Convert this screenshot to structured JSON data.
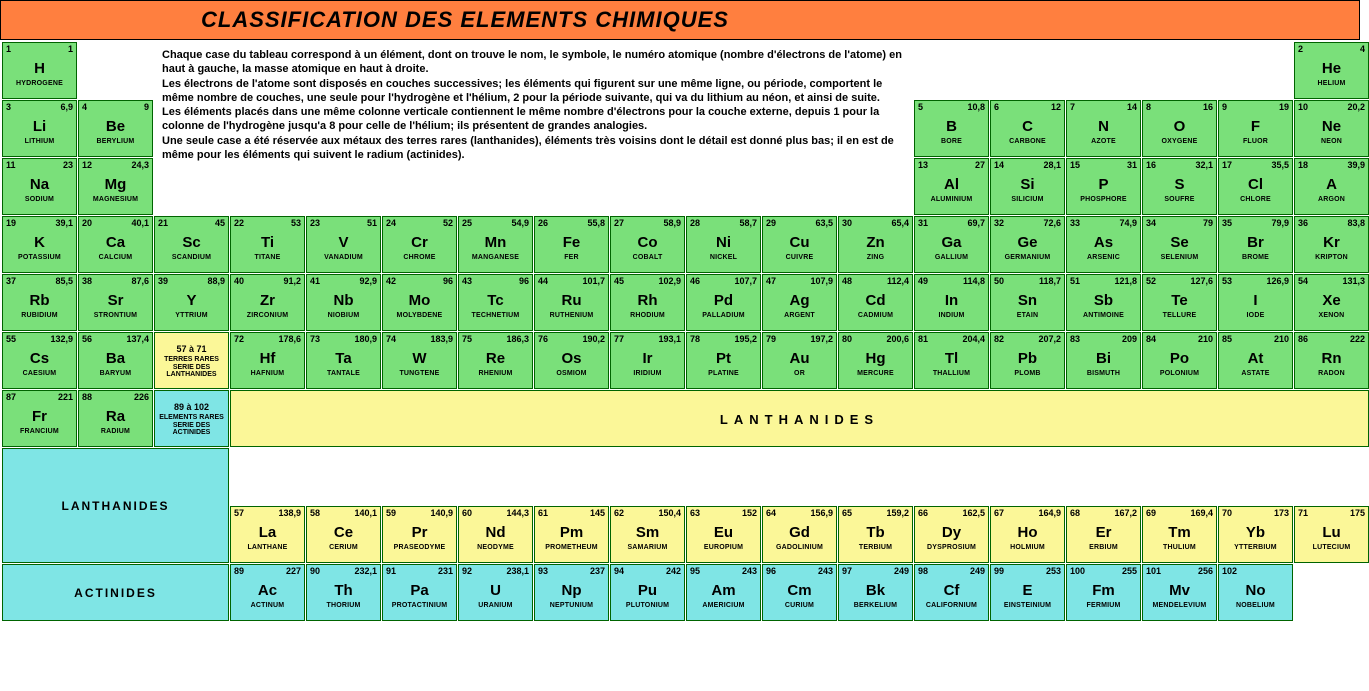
{
  "title": "CLASSIFICATION DES ELEMENTS CHIMIQUES",
  "description": [
    "Chaque case du tableau correspond à un élément, dont on trouve le nom, le symbole, le numéro atomique (nombre d'électrons de l'atome) en haut à gauche, la masse atomique en haut à droite.",
    "Les électrons de l'atome sont disposés en couches successives; les éléments qui figurent sur une même ligne, ou période, comportent le même nombre de couches, une seule pour l'hydrogène et l'hélium, 2 pour la période suivante, qui va du lithium au néon, et ainsi de suite.",
    "Les éléments placés dans une même colonne verticale contiennent le même nombre d'électrons pour la couche externe, depuis 1 pour la colonne de l'hydrogène jusqu'a 8 pour celle de l'hélium; ils présentent de grandes analogies.",
    "Une seule case a été réservée aux métaux  des terres rares (lanthanides), éléments très voisins dont le détail est donné plus bas; il en est de même pour les éléments qui suivent le radium (actinides)."
  ],
  "labels": {
    "lanthanides": "LANTHANIDES",
    "actinides": "ACTINIDES",
    "lanthSeries": {
      "range": "57 à 71",
      "text": "TERRES RARES SERIE DES LANTHANIDES"
    },
    "actSeries": {
      "range": "89 à 102",
      "text": "ELEMENTS RARES SERIE DES ACTINIDES"
    }
  },
  "colors": {
    "titleBg": "#ff7f3f",
    "green": "#7ae07a",
    "yellow": "#fbf798",
    "cyan": "#7fe5e5",
    "border": "#006400"
  },
  "elements": [
    {
      "n": 1,
      "m": "1",
      "s": "H",
      "nm": "HYDROGENE",
      "c": 1,
      "r": 1,
      "col": "green"
    },
    {
      "n": 2,
      "m": "4",
      "s": "He",
      "nm": "HELIUM",
      "c": 18,
      "r": 1,
      "col": "green"
    },
    {
      "n": 3,
      "m": "6,9",
      "s": "Li",
      "nm": "LITHIUM",
      "c": 1,
      "r": 2,
      "col": "green"
    },
    {
      "n": 4,
      "m": "9",
      "s": "Be",
      "nm": "BERYLIUM",
      "c": 2,
      "r": 2,
      "col": "green"
    },
    {
      "n": 5,
      "m": "10,8",
      "s": "B",
      "nm": "BORE",
      "c": 13,
      "r": 2,
      "col": "green"
    },
    {
      "n": 6,
      "m": "12",
      "s": "C",
      "nm": "CARBONE",
      "c": 14,
      "r": 2,
      "col": "green"
    },
    {
      "n": 7,
      "m": "14",
      "s": "N",
      "nm": "AZOTE",
      "c": 15,
      "r": 2,
      "col": "green"
    },
    {
      "n": 8,
      "m": "16",
      "s": "O",
      "nm": "OXYGENE",
      "c": 16,
      "r": 2,
      "col": "green"
    },
    {
      "n": 9,
      "m": "19",
      "s": "F",
      "nm": "FLUOR",
      "c": 17,
      "r": 2,
      "col": "green"
    },
    {
      "n": 10,
      "m": "20,2",
      "s": "Ne",
      "nm": "NEON",
      "c": 18,
      "r": 2,
      "col": "green"
    },
    {
      "n": 11,
      "m": "23",
      "s": "Na",
      "nm": "SODIUM",
      "c": 1,
      "r": 3,
      "col": "green"
    },
    {
      "n": 12,
      "m": "24,3",
      "s": "Mg",
      "nm": "MAGNESIUM",
      "c": 2,
      "r": 3,
      "col": "green"
    },
    {
      "n": 13,
      "m": "27",
      "s": "Al",
      "nm": "ALUMINIUM",
      "c": 13,
      "r": 3,
      "col": "green"
    },
    {
      "n": 14,
      "m": "28,1",
      "s": "Si",
      "nm": "SILICIUM",
      "c": 14,
      "r": 3,
      "col": "green"
    },
    {
      "n": 15,
      "m": "31",
      "s": "P",
      "nm": "PHOSPHORE",
      "c": 15,
      "r": 3,
      "col": "green"
    },
    {
      "n": 16,
      "m": "32,1",
      "s": "S",
      "nm": "SOUFRE",
      "c": 16,
      "r": 3,
      "col": "green"
    },
    {
      "n": 17,
      "m": "35,5",
      "s": "Cl",
      "nm": "CHLORE",
      "c": 17,
      "r": 3,
      "col": "green"
    },
    {
      "n": 18,
      "m": "39,9",
      "s": "A",
      "nm": "ARGON",
      "c": 18,
      "r": 3,
      "col": "green"
    },
    {
      "n": 19,
      "m": "39,1",
      "s": "K",
      "nm": "POTASSIUM",
      "c": 1,
      "r": 4,
      "col": "green"
    },
    {
      "n": 20,
      "m": "40,1",
      "s": "Ca",
      "nm": "CALCIUM",
      "c": 2,
      "r": 4,
      "col": "green"
    },
    {
      "n": 21,
      "m": "45",
      "s": "Sc",
      "nm": "SCANDIUM",
      "c": 3,
      "r": 4,
      "col": "green"
    },
    {
      "n": 22,
      "m": "53",
      "s": "Ti",
      "nm": "TITANE",
      "c": 4,
      "r": 4,
      "col": "green"
    },
    {
      "n": 23,
      "m": "51",
      "s": "V",
      "nm": "VANADIUM",
      "c": 5,
      "r": 4,
      "col": "green"
    },
    {
      "n": 24,
      "m": "52",
      "s": "Cr",
      "nm": "CHROME",
      "c": 6,
      "r": 4,
      "col": "green"
    },
    {
      "n": 25,
      "m": "54,9",
      "s": "Mn",
      "nm": "MANGANESE",
      "c": 7,
      "r": 4,
      "col": "green"
    },
    {
      "n": 26,
      "m": "55,8",
      "s": "Fe",
      "nm": "FER",
      "c": 8,
      "r": 4,
      "col": "green"
    },
    {
      "n": 27,
      "m": "58,9",
      "s": "Co",
      "nm": "COBALT",
      "c": 9,
      "r": 4,
      "col": "green"
    },
    {
      "n": 28,
      "m": "58,7",
      "s": "Ni",
      "nm": "NICKEL",
      "c": 10,
      "r": 4,
      "col": "green"
    },
    {
      "n": 29,
      "m": "63,5",
      "s": "Cu",
      "nm": "CUIVRE",
      "c": 11,
      "r": 4,
      "col": "green"
    },
    {
      "n": 30,
      "m": "65,4",
      "s": "Zn",
      "nm": "ZING",
      "c": 12,
      "r": 4,
      "col": "green"
    },
    {
      "n": 31,
      "m": "69,7",
      "s": "Ga",
      "nm": "GALLIUM",
      "c": 13,
      "r": 4,
      "col": "green"
    },
    {
      "n": 32,
      "m": "72,6",
      "s": "Ge",
      "nm": "GERMANIUM",
      "c": 14,
      "r": 4,
      "col": "green"
    },
    {
      "n": 33,
      "m": "74,9",
      "s": "As",
      "nm": "ARSENIC",
      "c": 15,
      "r": 4,
      "col": "green"
    },
    {
      "n": 34,
      "m": "79",
      "s": "Se",
      "nm": "SELENIUM",
      "c": 16,
      "r": 4,
      "col": "green"
    },
    {
      "n": 35,
      "m": "79,9",
      "s": "Br",
      "nm": "BROME",
      "c": 17,
      "r": 4,
      "col": "green"
    },
    {
      "n": 36,
      "m": "83,8",
      "s": "Kr",
      "nm": "KRIPTON",
      "c": 18,
      "r": 4,
      "col": "green"
    },
    {
      "n": 37,
      "m": "85,5",
      "s": "Rb",
      "nm": "RUBIDIUM",
      "c": 1,
      "r": 5,
      "col": "green"
    },
    {
      "n": 38,
      "m": "87,6",
      "s": "Sr",
      "nm": "STRONTIUM",
      "c": 2,
      "r": 5,
      "col": "green"
    },
    {
      "n": 39,
      "m": "88,9",
      "s": "Y",
      "nm": "YTTRIUM",
      "c": 3,
      "r": 5,
      "col": "green"
    },
    {
      "n": 40,
      "m": "91,2",
      "s": "Zr",
      "nm": "ZIRCONIUM",
      "c": 4,
      "r": 5,
      "col": "green"
    },
    {
      "n": 41,
      "m": "92,9",
      "s": "Nb",
      "nm": "NIOBIUM",
      "c": 5,
      "r": 5,
      "col": "green"
    },
    {
      "n": 42,
      "m": "96",
      "s": "Mo",
      "nm": "MOLYBDENE",
      "c": 6,
      "r": 5,
      "col": "green"
    },
    {
      "n": 43,
      "m": "96",
      "s": "Tc",
      "nm": "TECHNETIUM",
      "c": 7,
      "r": 5,
      "col": "green"
    },
    {
      "n": 44,
      "m": "101,7",
      "s": "Ru",
      "nm": "RUTHENIUM",
      "c": 8,
      "r": 5,
      "col": "green"
    },
    {
      "n": 45,
      "m": "102,9",
      "s": "Rh",
      "nm": "RHODIUM",
      "c": 9,
      "r": 5,
      "col": "green"
    },
    {
      "n": 46,
      "m": "107,7",
      "s": "Pd",
      "nm": "PALLADIUM",
      "c": 10,
      "r": 5,
      "col": "green"
    },
    {
      "n": 47,
      "m": "107,9",
      "s": "Ag",
      "nm": "ARGENT",
      "c": 11,
      "r": 5,
      "col": "green"
    },
    {
      "n": 48,
      "m": "112,4",
      "s": "Cd",
      "nm": "CADMIUM",
      "c": 12,
      "r": 5,
      "col": "green"
    },
    {
      "n": 49,
      "m": "114,8",
      "s": "In",
      "nm": "INDIUM",
      "c": 13,
      "r": 5,
      "col": "green"
    },
    {
      "n": 50,
      "m": "118,7",
      "s": "Sn",
      "nm": "ETAIN",
      "c": 14,
      "r": 5,
      "col": "green"
    },
    {
      "n": 51,
      "m": "121,8",
      "s": "Sb",
      "nm": "ANTIMOINE",
      "c": 15,
      "r": 5,
      "col": "green"
    },
    {
      "n": 52,
      "m": "127,6",
      "s": "Te",
      "nm": "TELLURE",
      "c": 16,
      "r": 5,
      "col": "green"
    },
    {
      "n": 53,
      "m": "126,9",
      "s": "I",
      "nm": "IODE",
      "c": 17,
      "r": 5,
      "col": "green"
    },
    {
      "n": 54,
      "m": "131,3",
      "s": "Xe",
      "nm": "XENON",
      "c": 18,
      "r": 5,
      "col": "green"
    },
    {
      "n": 55,
      "m": "132,9",
      "s": "Cs",
      "nm": "CAESIUM",
      "c": 1,
      "r": 6,
      "col": "green"
    },
    {
      "n": 56,
      "m": "137,4",
      "s": "Ba",
      "nm": "BARYUM",
      "c": 2,
      "r": 6,
      "col": "green"
    },
    {
      "n": 72,
      "m": "178,6",
      "s": "Hf",
      "nm": "HAFNIUM",
      "c": 4,
      "r": 6,
      "col": "green"
    },
    {
      "n": 73,
      "m": "180,9",
      "s": "Ta",
      "nm": "TANTALE",
      "c": 5,
      "r": 6,
      "col": "green"
    },
    {
      "n": 74,
      "m": "183,9",
      "s": "W",
      "nm": "TUNGTENE",
      "c": 6,
      "r": 6,
      "col": "green"
    },
    {
      "n": 75,
      "m": "186,3",
      "s": "Re",
      "nm": "RHENIUM",
      "c": 7,
      "r": 6,
      "col": "green"
    },
    {
      "n": 76,
      "m": "190,2",
      "s": "Os",
      "nm": "OSMIOM",
      "c": 8,
      "r": 6,
      "col": "green"
    },
    {
      "n": 77,
      "m": "193,1",
      "s": "Ir",
      "nm": "IRIDIUM",
      "c": 9,
      "r": 6,
      "col": "green"
    },
    {
      "n": 78,
      "m": "195,2",
      "s": "Pt",
      "nm": "PLATINE",
      "c": 10,
      "r": 6,
      "col": "green"
    },
    {
      "n": 79,
      "m": "197,2",
      "s": "Au",
      "nm": "OR",
      "c": 11,
      "r": 6,
      "col": "green"
    },
    {
      "n": 80,
      "m": "200,6",
      "s": "Hg",
      "nm": "MERCURE",
      "c": 12,
      "r": 6,
      "col": "green"
    },
    {
      "n": 81,
      "m": "204,4",
      "s": "Tl",
      "nm": "THALLIUM",
      "c": 13,
      "r": 6,
      "col": "green"
    },
    {
      "n": 82,
      "m": "207,2",
      "s": "Pb",
      "nm": "PLOMB",
      "c": 14,
      "r": 6,
      "col": "green"
    },
    {
      "n": 83,
      "m": "209",
      "s": "Bi",
      "nm": "BISMUTH",
      "c": 15,
      "r": 6,
      "col": "green"
    },
    {
      "n": 84,
      "m": "210",
      "s": "Po",
      "nm": "POLONIUM",
      "c": 16,
      "r": 6,
      "col": "green"
    },
    {
      "n": 85,
      "m": "210",
      "s": "At",
      "nm": "ASTATE",
      "c": 17,
      "r": 6,
      "col": "green"
    },
    {
      "n": 86,
      "m": "222",
      "s": "Rn",
      "nm": "RADON",
      "c": 18,
      "r": 6,
      "col": "green"
    },
    {
      "n": 87,
      "m": "221",
      "s": "Fr",
      "nm": "FRANCIUM",
      "c": 1,
      "r": 7,
      "col": "green"
    },
    {
      "n": 88,
      "m": "226",
      "s": "Ra",
      "nm": "RADIUM",
      "c": 2,
      "r": 7,
      "col": "green"
    },
    {
      "n": 57,
      "m": "138,9",
      "s": "La",
      "nm": "LANTHANE",
      "c": 4,
      "r": 9,
      "col": "yellow"
    },
    {
      "n": 58,
      "m": "140,1",
      "s": "Ce",
      "nm": "CERIUM",
      "c": 5,
      "r": 9,
      "col": "yellow"
    },
    {
      "n": 59,
      "m": "140,9",
      "s": "Pr",
      "nm": "PRASEODYME",
      "c": 6,
      "r": 9,
      "col": "yellow"
    },
    {
      "n": 60,
      "m": "144,3",
      "s": "Nd",
      "nm": "NEODYME",
      "c": 7,
      "r": 9,
      "col": "yellow"
    },
    {
      "n": 61,
      "m": "145",
      "s": "Pm",
      "nm": "PROMETHEUM",
      "c": 8,
      "r": 9,
      "col": "yellow"
    },
    {
      "n": 62,
      "m": "150,4",
      "s": "Sm",
      "nm": "SAMARIUM",
      "c": 9,
      "r": 9,
      "col": "yellow"
    },
    {
      "n": 63,
      "m": "152",
      "s": "Eu",
      "nm": "EUROPIUM",
      "c": 10,
      "r": 9,
      "col": "yellow"
    },
    {
      "n": 64,
      "m": "156,9",
      "s": "Gd",
      "nm": "GADOLINIUM",
      "c": 11,
      "r": 9,
      "col": "yellow"
    },
    {
      "n": 65,
      "m": "159,2",
      "s": "Tb",
      "nm": "TERBIUM",
      "c": 12,
      "r": 9,
      "col": "yellow"
    },
    {
      "n": 66,
      "m": "162,5",
      "s": "Dy",
      "nm": "DYSPROSIUM",
      "c": 13,
      "r": 9,
      "col": "yellow"
    },
    {
      "n": 67,
      "m": "164,9",
      "s": "Ho",
      "nm": "HOLMIUM",
      "c": 14,
      "r": 9,
      "col": "yellow"
    },
    {
      "n": 68,
      "m": "167,2",
      "s": "Er",
      "nm": "ERBIUM",
      "c": 15,
      "r": 9,
      "col": "yellow"
    },
    {
      "n": 69,
      "m": "169,4",
      "s": "Tm",
      "nm": "THULIUM",
      "c": 16,
      "r": 9,
      "col": "yellow"
    },
    {
      "n": 70,
      "m": "173",
      "s": "Yb",
      "nm": "YTTERBIUM",
      "c": 17,
      "r": 9,
      "col": "yellow"
    },
    {
      "n": 71,
      "m": "175",
      "s": "Lu",
      "nm": "LUTECIUM",
      "c": 18,
      "r": 9,
      "col": "yellow"
    },
    {
      "n": 89,
      "m": "227",
      "s": "Ac",
      "nm": "ACTINUM",
      "c": 4,
      "r": 10,
      "col": "cyan"
    },
    {
      "n": 90,
      "m": "232,1",
      "s": "Th",
      "nm": "THORIUM",
      "c": 5,
      "r": 10,
      "col": "cyan"
    },
    {
      "n": 91,
      "m": "231",
      "s": "Pa",
      "nm": "PROTACTINIUM",
      "c": 6,
      "r": 10,
      "col": "cyan"
    },
    {
      "n": 92,
      "m": "238,1",
      "s": "U",
      "nm": "URANIUM",
      "c": 7,
      "r": 10,
      "col": "cyan"
    },
    {
      "n": 93,
      "m": "237",
      "s": "Np",
      "nm": "NEPTUNIUM",
      "c": 8,
      "r": 10,
      "col": "cyan"
    },
    {
      "n": 94,
      "m": "242",
      "s": "Pu",
      "nm": "PLUTONIUM",
      "c": 9,
      "r": 10,
      "col": "cyan"
    },
    {
      "n": 95,
      "m": "243",
      "s": "Am",
      "nm": "AMERICIUM",
      "c": 10,
      "r": 10,
      "col": "cyan"
    },
    {
      "n": 96,
      "m": "243",
      "s": "Cm",
      "nm": "CURIUM",
      "c": 11,
      "r": 10,
      "col": "cyan"
    },
    {
      "n": 97,
      "m": "249",
      "s": "Bk",
      "nm": "BERKELIUM",
      "c": 12,
      "r": 10,
      "col": "cyan"
    },
    {
      "n": 98,
      "m": "249",
      "s": "Cf",
      "nm": "CALIFORNIUM",
      "c": 13,
      "r": 10,
      "col": "cyan"
    },
    {
      "n": 99,
      "m": "253",
      "s": "E",
      "nm": "EINSTEINIUM",
      "c": 14,
      "r": 10,
      "col": "cyan"
    },
    {
      "n": 100,
      "m": "255",
      "s": "Fm",
      "nm": "FERMIUM",
      "c": 15,
      "r": 10,
      "col": "cyan"
    },
    {
      "n": 101,
      "m": "256",
      "s": "Mv",
      "nm": "MENDELEVIUM",
      "c": 16,
      "r": 10,
      "col": "cyan"
    },
    {
      "n": 102,
      "m": "",
      "s": "No",
      "nm": "NOBELIUM",
      "c": 17,
      "r": 10,
      "col": "cyan"
    }
  ]
}
